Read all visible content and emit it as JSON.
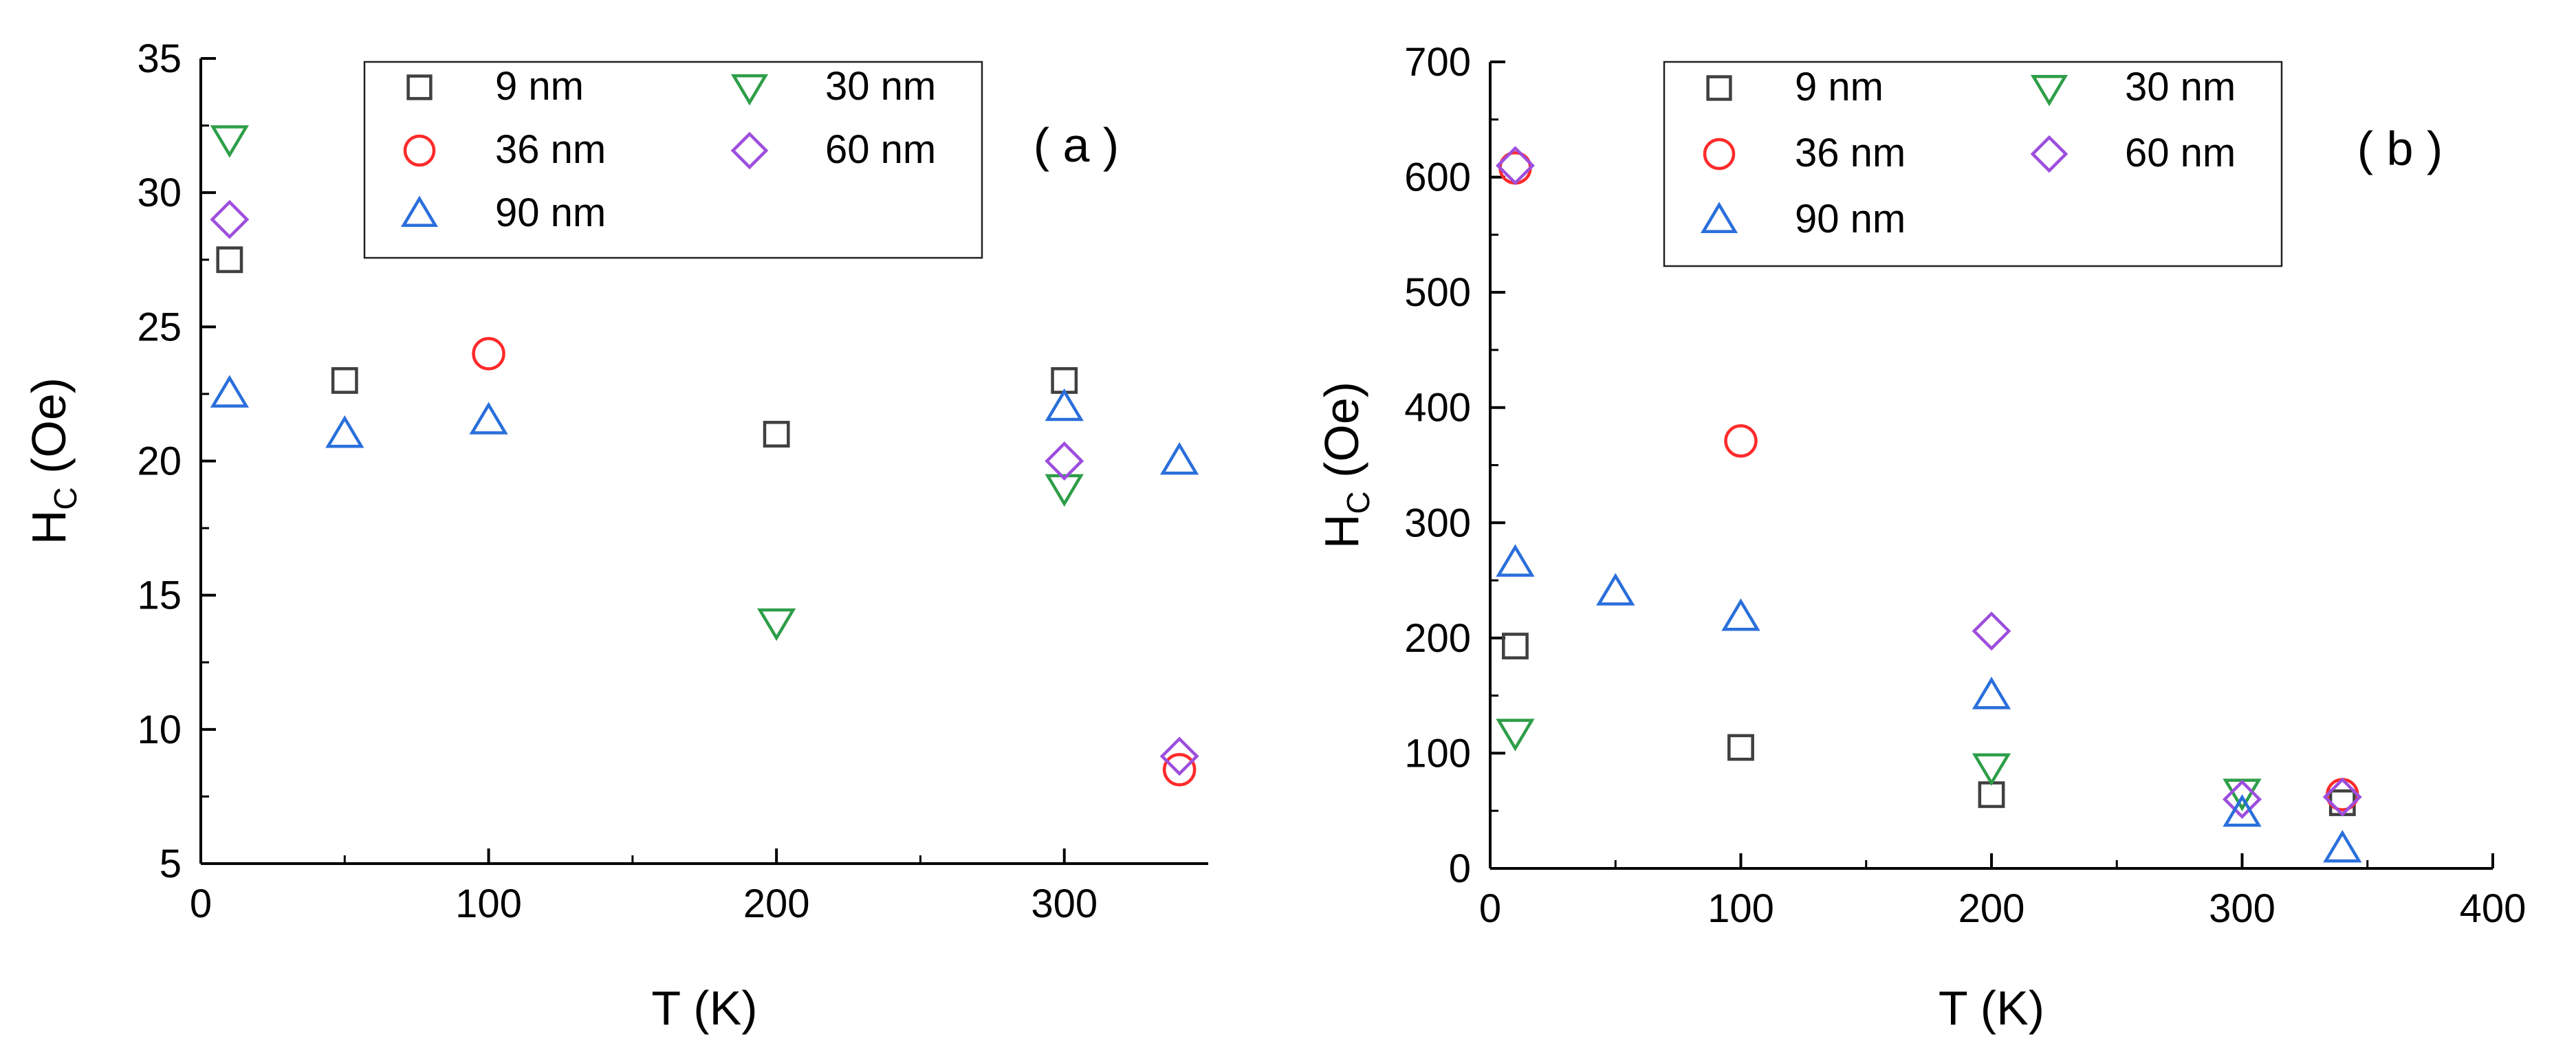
{
  "chart_data": [
    {
      "type": "scatter",
      "panel_label": "( a )",
      "xlabel": "T (K)",
      "ylabel_main": "H",
      "ylabel_sub": "C",
      "ylabel_unit": " (Oe)",
      "xlim": [
        0,
        350
      ],
      "ylim": [
        5,
        35
      ],
      "xticks": [
        0,
        100,
        200,
        300
      ],
      "yticks": [
        5,
        10,
        15,
        20,
        25,
        30,
        35
      ],
      "grid": false,
      "legend_position": "top-center",
      "series": [
        {
          "name": "9 nm",
          "marker": "square",
          "color": "#404040",
          "points": [
            [
              10,
              27.5
            ],
            [
              50,
              23.0
            ],
            [
              200,
              21.0
            ],
            [
              300,
              23.0
            ]
          ]
        },
        {
          "name": "30 nm",
          "marker": "triangle-down",
          "color": "#2e9e48",
          "points": [
            [
              10,
              32.0
            ],
            [
              200,
              14.0
            ],
            [
              300,
              19.0
            ]
          ]
        },
        {
          "name": "36 nm",
          "marker": "circle",
          "color": "#ff2a2a",
          "points": [
            [
              100,
              24.0
            ],
            [
              340,
              8.5
            ]
          ]
        },
        {
          "name": "60 nm",
          "marker": "diamond",
          "color": "#9d4edd",
          "points": [
            [
              10,
              29.0
            ],
            [
              300,
              20.0
            ],
            [
              340,
              9.0
            ]
          ]
        },
        {
          "name": "90 nm",
          "marker": "triangle-up",
          "color": "#2a6fdb",
          "points": [
            [
              10,
              22.5
            ],
            [
              50,
              21.0
            ],
            [
              100,
              21.5
            ],
            [
              300,
              22.0
            ],
            [
              340,
              20.0
            ]
          ]
        }
      ]
    },
    {
      "type": "scatter",
      "panel_label": "( b )",
      "xlabel": "T (K)",
      "ylabel_main": "H",
      "ylabel_sub": "C",
      "ylabel_unit": " (Oe)",
      "xlim": [
        0,
        400
      ],
      "ylim": [
        0,
        700
      ],
      "xticks": [
        0,
        100,
        200,
        300,
        400
      ],
      "yticks": [
        0,
        100,
        200,
        300,
        400,
        500,
        600,
        700
      ],
      "grid": false,
      "legend_position": "top-center",
      "series": [
        {
          "name": "9 nm",
          "marker": "square",
          "color": "#404040",
          "points": [
            [
              10,
              193
            ],
            [
              100,
              105
            ],
            [
              200,
              64
            ],
            [
              340,
              57
            ]
          ]
        },
        {
          "name": "30 nm",
          "marker": "triangle-down",
          "color": "#2e9e48",
          "points": [
            [
              10,
              118
            ],
            [
              200,
              88
            ],
            [
              300,
              66
            ]
          ]
        },
        {
          "name": "36 nm",
          "marker": "circle",
          "color": "#ff2a2a",
          "points": [
            [
              10,
              608
            ],
            [
              100,
              371
            ],
            [
              340,
              64
            ]
          ]
        },
        {
          "name": "60 nm",
          "marker": "diamond",
          "color": "#9d4edd",
          "points": [
            [
              10,
              610
            ],
            [
              200,
              206
            ],
            [
              300,
              60
            ],
            [
              340,
              62
            ]
          ]
        },
        {
          "name": "90 nm",
          "marker": "triangle-up",
          "color": "#2a6fdb",
          "points": [
            [
              10,
              265
            ],
            [
              50,
              240
            ],
            [
              100,
              218
            ],
            [
              200,
              150
            ],
            [
              300,
              48
            ],
            [
              340,
              17
            ]
          ]
        }
      ]
    }
  ]
}
